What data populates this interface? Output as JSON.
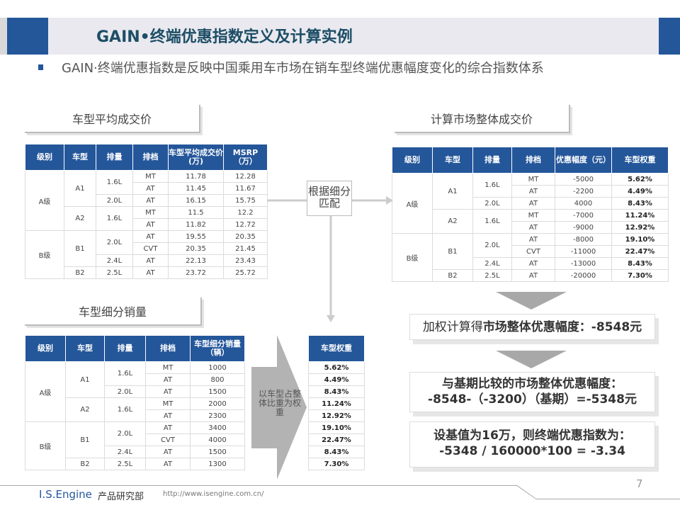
{
  "header": {
    "title": "GAIN•终端优惠指数定义及计算实例",
    "subtitle": "GAIN·终端优惠指数是反映中国乘用车市场在销车型终端优惠幅度变化的综合指数体系"
  },
  "colors": {
    "brand_blue": "#24569a",
    "title_color": "#1d4e66"
  },
  "sections": {
    "avg_price": "车型平均成交价",
    "market_price": "计算市场整体成交价",
    "segment_sales": "车型细分销量"
  },
  "table1": {
    "headers": [
      "级别",
      "车型",
      "排量",
      "排档",
      "车型平均成交价(万)",
      "MSRP（万）"
    ],
    "rows": [
      [
        "A级",
        "A1",
        "1.6L",
        "MT",
        "11.78",
        "12.28"
      ],
      [
        "A级",
        "A1",
        "1.6L",
        "AT",
        "11.45",
        "11.67"
      ],
      [
        "A级",
        "A1",
        "2.0L",
        "AT",
        "16.15",
        "15.75"
      ],
      [
        "A级",
        "A2",
        "1.6L",
        "MT",
        "11.5",
        "12.2"
      ],
      [
        "A级",
        "A2",
        "1.6L",
        "AT",
        "11.82",
        "12.72"
      ],
      [
        "B级",
        "B1",
        "2.0L",
        "AT",
        "19.55",
        "20.35"
      ],
      [
        "B级",
        "B1",
        "2.0L",
        "CVT",
        "20.35",
        "21.45"
      ],
      [
        "B级",
        "B1",
        "2.4L",
        "AT",
        "22.13",
        "23.43"
      ],
      [
        "B级",
        "B2",
        "2.5L",
        "AT",
        "23.72",
        "25.72"
      ]
    ]
  },
  "match_label": "根据细分匹配",
  "table2": {
    "headers": [
      "级别",
      "车型",
      "排量",
      "排档",
      "优惠幅度（元）",
      "车型权重"
    ],
    "rows": [
      [
        "A级",
        "A1",
        "1.6L",
        "MT",
        "-5000",
        "5.62%"
      ],
      [
        "A级",
        "A1",
        "1.6L",
        "AT",
        "-2200",
        "4.49%"
      ],
      [
        "A级",
        "A1",
        "2.0L",
        "AT",
        "4000",
        "8.43%"
      ],
      [
        "A级",
        "A2",
        "1.6L",
        "MT",
        "-7000",
        "11.24%"
      ],
      [
        "A级",
        "A2",
        "1.6L",
        "AT",
        "-9000",
        "12.92%"
      ],
      [
        "B级",
        "B1",
        "2.0L",
        "AT",
        "-8000",
        "19.10%"
      ],
      [
        "B级",
        "B1",
        "2.0L",
        "CVT",
        "-11000",
        "22.47%"
      ],
      [
        "B级",
        "B1",
        "2.4L",
        "AT",
        "-13000",
        "8.43%"
      ],
      [
        "B级",
        "B2",
        "2.5L",
        "AT",
        "-20000",
        "7.30%"
      ]
    ]
  },
  "table3": {
    "headers": [
      "级别",
      "车型",
      "排量",
      "排档",
      "车型细分销量（辆）"
    ],
    "rows": [
      [
        "A级",
        "A1",
        "1.6L",
        "MT",
        "1000"
      ],
      [
        "A级",
        "A1",
        "1.6L",
        "AT",
        "800"
      ],
      [
        "A级",
        "A1",
        "2.0L",
        "AT",
        "1500"
      ],
      [
        "A级",
        "A2",
        "1.6L",
        "MT",
        "2000"
      ],
      [
        "A级",
        "A2",
        "1.6L",
        "AT",
        "2300"
      ],
      [
        "B级",
        "B1",
        "2.0L",
        "AT",
        "3400"
      ],
      [
        "B级",
        "B1",
        "2.0L",
        "CVT",
        "4000"
      ],
      [
        "B级",
        "B1",
        "2.4L",
        "AT",
        "1500"
      ],
      [
        "B级",
        "B2",
        "2.5L",
        "AT",
        "1300"
      ]
    ]
  },
  "weight_arrow_label": "以车型占整体比重为权重",
  "weights": {
    "header": "车型权重",
    "values": [
      "5.62%",
      "4.49%",
      "8.43%",
      "11.24%",
      "12.92%",
      "19.10%",
      "22.47%",
      "8.43%",
      "7.30%"
    ]
  },
  "results": {
    "step1_prefix": "加权计算得",
    "step1_main": "市场整体优惠幅度：-8548元",
    "step2_line1": "与基期比较的市场整体优惠幅度：",
    "step2_line2": "-8548-（-3200）（基期）=-5348元",
    "step3_line1": "设基值为16万，则终端优惠指数为：",
    "step3_line2": "-5348 / 160000*100 = -3.34"
  },
  "footer": {
    "brand": "I.S.Engine",
    "dept": "产品研究部",
    "url": "http://www.isengine.com.cn/",
    "page": "7"
  }
}
